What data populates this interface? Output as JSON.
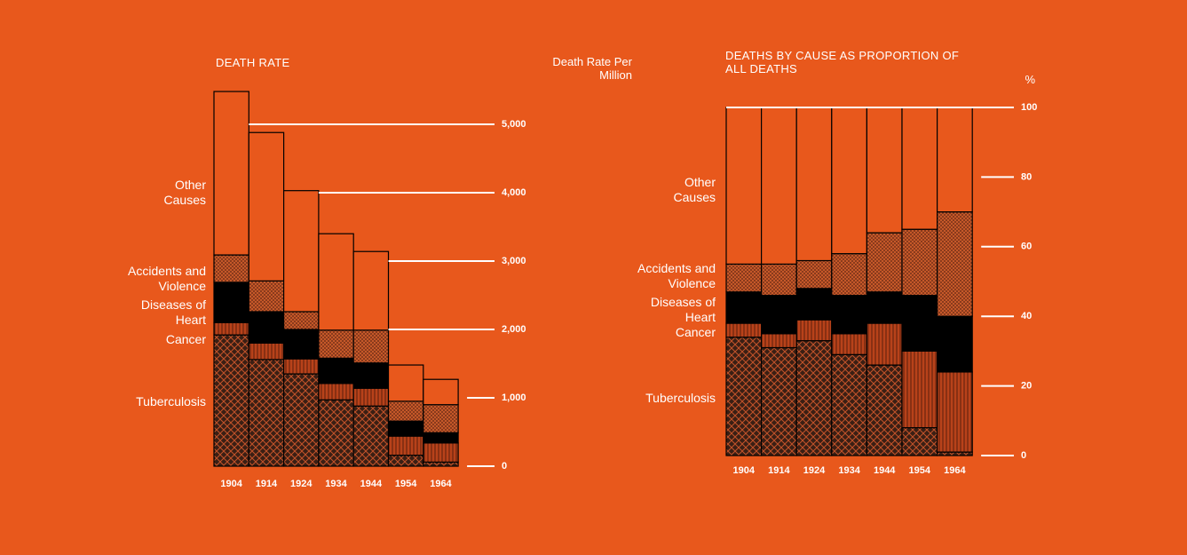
{
  "chart_data": [
    {
      "type": "bar",
      "stacked": true,
      "title": "DEATH RATE",
      "y_label": "Death Rate Per Million",
      "categories": [
        "1904",
        "1914",
        "1924",
        "1934",
        "1944",
        "1954",
        "1964"
      ],
      "series": [
        {
          "name": "Tuberculosis",
          "color": "#3a1f14",
          "values": [
            1920,
            1560,
            1350,
            970,
            880,
            160,
            60
          ]
        },
        {
          "name": "Cancer",
          "color": "#b8421a",
          "values": [
            180,
            240,
            220,
            240,
            260,
            280,
            280
          ]
        },
        {
          "name": "Diseases of Heart",
          "color": "#000000",
          "values": [
            590,
            460,
            430,
            370,
            370,
            220,
            150
          ]
        },
        {
          "name": "Accidents and Violence",
          "color": "#7a3218",
          "values": [
            400,
            450,
            260,
            410,
            480,
            290,
            410
          ]
        },
        {
          "name": "Other Causes",
          "color": "#e8581c",
          "values": [
            2390,
            2170,
            1770,
            1410,
            1150,
            530,
            370
          ]
        }
      ],
      "ylim": [
        0,
        5500
      ],
      "yticks": [
        0,
        {
          "value": 1000,
          "label": "1,000"
        },
        {
          "value": 2000,
          "label": "2,000"
        },
        {
          "value": 3000,
          "label": "3,000"
        },
        {
          "value": 4000,
          "label": "4,000"
        },
        {
          "value": 5000,
          "label": "5,000"
        }
      ]
    },
    {
      "type": "bar",
      "stacked": true,
      "title": "DEATHS BY CAUSE AS PROPORTION OF ALL DEATHS",
      "y_label": "%",
      "categories": [
        "1904",
        "1914",
        "1924",
        "1934",
        "1944",
        "1954",
        "1964"
      ],
      "series": [
        {
          "name": "Tuberculosis",
          "color": "#3a1f14",
          "values": [
            34,
            31,
            33,
            29,
            26,
            8,
            1
          ]
        },
        {
          "name": "Cancer",
          "color": "#b8421a",
          "values": [
            4,
            4,
            6,
            6,
            12,
            22,
            23
          ]
        },
        {
          "name": "Diseases of Heart",
          "color": "#000000",
          "values": [
            9,
            11,
            9,
            11,
            9,
            16,
            16
          ]
        },
        {
          "name": "Accidents and Violence",
          "color": "#7a3218",
          "values": [
            8,
            9,
            8,
            12,
            17,
            19,
            30
          ]
        },
        {
          "name": "Other Causes",
          "color": "#e8581c",
          "values": [
            45,
            45,
            44,
            42,
            36,
            35,
            30
          ]
        }
      ],
      "ylim": [
        0,
        100
      ],
      "yticks": [
        0,
        20,
        40,
        60,
        80,
        100
      ]
    }
  ]
}
